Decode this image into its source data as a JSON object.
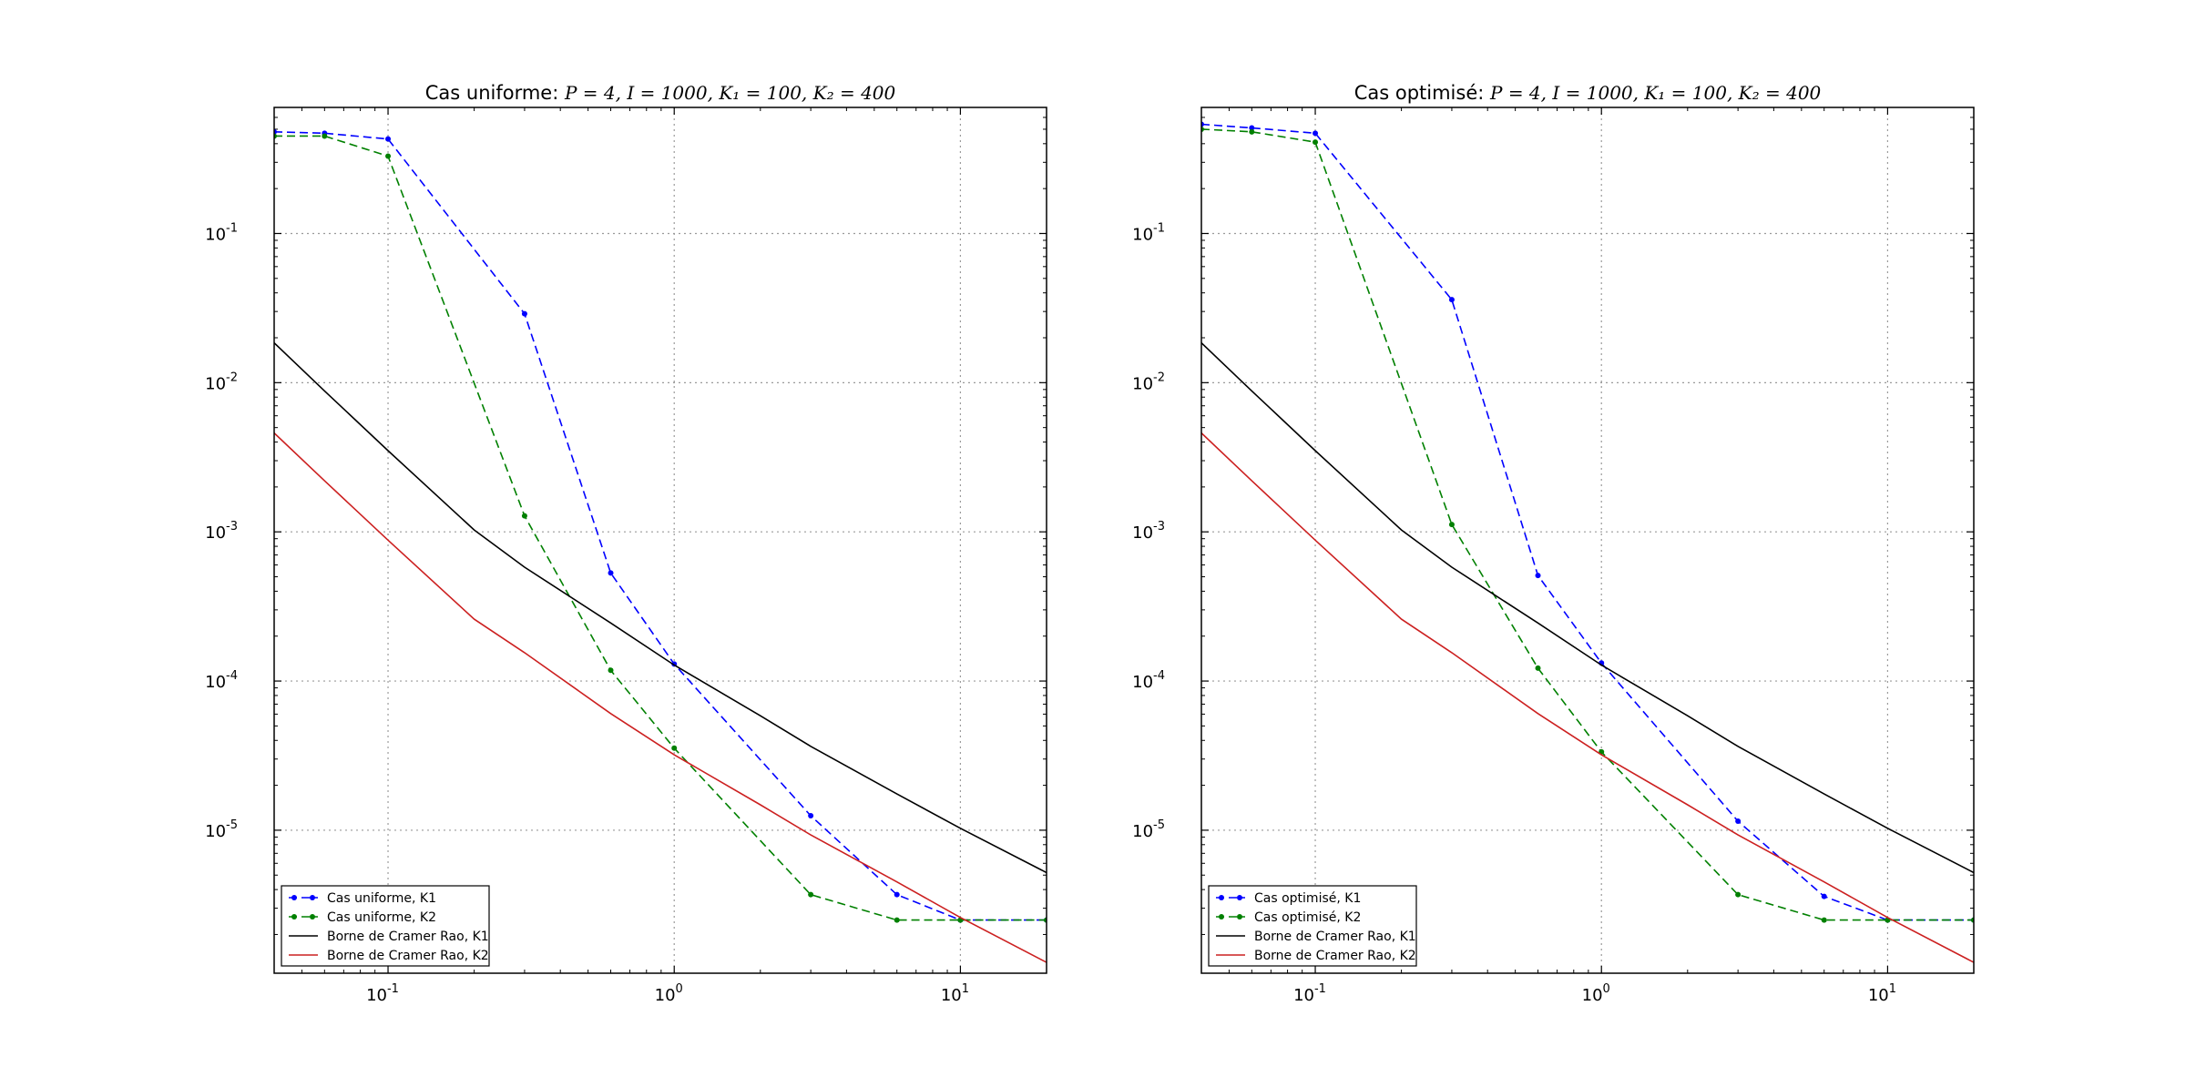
{
  "chart_data": [
    {
      "type": "line",
      "title": "Cas uniforme: P=4, I=1000, K₁=100, K₂=400",
      "title_prefix": "Cas uniforme: ",
      "title_math": "P = 4, I = 1000, K₁ = 100, K₂ = 400",
      "xscale": "log",
      "yscale": "log",
      "xlim": [
        0.04,
        20
      ],
      "ylim": [
        1.1e-06,
        0.7
      ],
      "x_ticks": [
        {
          "value": 0.1,
          "base": "10",
          "exp": "-1"
        },
        {
          "value": 1,
          "base": "10",
          "exp": "0"
        },
        {
          "value": 10,
          "base": "10",
          "exp": "1"
        }
      ],
      "y_ticks": [
        {
          "value": 0.1,
          "base": "10",
          "exp": "-1"
        },
        {
          "value": 0.01,
          "base": "10",
          "exp": "-2"
        },
        {
          "value": 0.001,
          "base": "10",
          "exp": "-3"
        },
        {
          "value": 0.0001,
          "base": "10",
          "exp": "-4"
        },
        {
          "value": 1e-05,
          "base": "10",
          "exp": "-5"
        }
      ],
      "grid": true,
      "legend_position": "lower-left",
      "series": [
        {
          "name": "Cas uniforme, K1",
          "color": "#0000ff",
          "style": "dashed-markers",
          "x": [
            0.04,
            0.06,
            0.1,
            0.3,
            0.6,
            1,
            3,
            6,
            10,
            20
          ],
          "y": [
            0.48,
            0.47,
            0.43,
            0.029,
            0.00053,
            0.00013,
            1.25e-05,
            3.7e-06,
            2.5e-06,
            2.5e-06
          ]
        },
        {
          "name": "Cas uniforme, K2",
          "color": "#008000",
          "style": "dashed-markers",
          "x": [
            0.04,
            0.06,
            0.1,
            0.3,
            0.6,
            1,
            3,
            6,
            10,
            20
          ],
          "y": [
            0.45,
            0.45,
            0.33,
            0.00128,
            0.000118,
            3.55e-05,
            3.7e-06,
            2.5e-06,
            2.5e-06,
            2.5e-06
          ]
        },
        {
          "name": "Borne de Cramer Rao, K1",
          "color": "#000000",
          "style": "solid",
          "x": [
            0.04,
            0.06,
            0.1,
            0.2,
            0.3,
            0.6,
            1,
            2,
            3,
            6,
            10,
            20
          ],
          "y": [
            0.0185,
            0.0088,
            0.0035,
            0.00103,
            0.00058,
            0.000245,
            0.000128,
            5.85e-05,
            3.65e-05,
            1.75e-05,
            1.03e-05,
            5.2e-06
          ]
        },
        {
          "name": "Borne de Cramer Rao, K2",
          "color": "#cc2020",
          "style": "solid",
          "x": [
            0.04,
            0.06,
            0.1,
            0.2,
            0.3,
            0.6,
            1,
            2,
            3,
            6,
            10,
            20
          ],
          "y": [
            0.0046,
            0.0022,
            0.00088,
            0.00026,
            0.000155,
            6.05e-05,
            3.2e-05,
            1.48e-05,
            9.3e-06,
            4.5e-06,
            2.6e-06,
            1.3e-06
          ]
        }
      ]
    },
    {
      "type": "line",
      "title": "Cas optimisé: P=4, I=1000, K₁=100, K₂=400",
      "title_prefix": "Cas optimisé: ",
      "title_math": "P = 4, I = 1000, K₁ = 100, K₂ = 400",
      "xscale": "log",
      "yscale": "log",
      "xlim": [
        0.04,
        20
      ],
      "ylim": [
        1.1e-06,
        0.7
      ],
      "x_ticks": [
        {
          "value": 0.1,
          "base": "10",
          "exp": "-1"
        },
        {
          "value": 1,
          "base": "10",
          "exp": "0"
        },
        {
          "value": 10,
          "base": "10",
          "exp": "1"
        }
      ],
      "y_ticks": [
        {
          "value": 0.1,
          "base": "10",
          "exp": "-1"
        },
        {
          "value": 0.01,
          "base": "10",
          "exp": "-2"
        },
        {
          "value": 0.001,
          "base": "10",
          "exp": "-3"
        },
        {
          "value": 0.0001,
          "base": "10",
          "exp": "-4"
        },
        {
          "value": 1e-05,
          "base": "10",
          "exp": "-5"
        }
      ],
      "grid": true,
      "legend_position": "lower-left",
      "series": [
        {
          "name": "Cas optimisé, K1",
          "color": "#0000ff",
          "style": "dashed-markers",
          "x": [
            0.04,
            0.06,
            0.1,
            0.3,
            0.6,
            1,
            3,
            6,
            10,
            20
          ],
          "y": [
            0.54,
            0.51,
            0.47,
            0.036,
            0.00051,
            0.000132,
            1.15e-05,
            3.6e-06,
            2.5e-06,
            2.5e-06
          ]
        },
        {
          "name": "Cas optimisé, K2",
          "color": "#008000",
          "style": "dashed-markers",
          "x": [
            0.04,
            0.06,
            0.1,
            0.3,
            0.6,
            1,
            3,
            6,
            10,
            20
          ],
          "y": [
            0.5,
            0.48,
            0.41,
            0.00112,
            0.000122,
            3.35e-05,
            3.7e-06,
            2.5e-06,
            2.5e-06,
            2.5e-06
          ]
        },
        {
          "name": "Borne de Cramer Rao, K1",
          "color": "#000000",
          "style": "solid",
          "x": [
            0.04,
            0.06,
            0.1,
            0.2,
            0.3,
            0.6,
            1,
            2,
            3,
            6,
            10,
            20
          ],
          "y": [
            0.0185,
            0.0088,
            0.0035,
            0.00103,
            0.00058,
            0.000245,
            0.000128,
            5.85e-05,
            3.65e-05,
            1.75e-05,
            1.03e-05,
            5.2e-06
          ]
        },
        {
          "name": "Borne de Cramer Rao, K2",
          "color": "#cc2020",
          "style": "solid",
          "x": [
            0.04,
            0.06,
            0.1,
            0.2,
            0.3,
            0.6,
            1,
            2,
            3,
            6,
            10,
            20
          ],
          "y": [
            0.0046,
            0.0022,
            0.00088,
            0.00026,
            0.000155,
            6.05e-05,
            3.2e-05,
            1.48e-05,
            9.3e-06,
            4.5e-06,
            2.6e-06,
            1.3e-06
          ]
        }
      ]
    }
  ]
}
